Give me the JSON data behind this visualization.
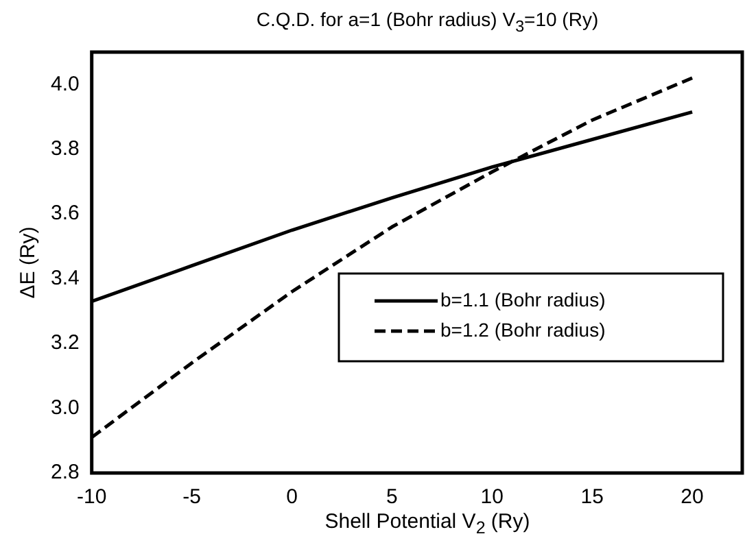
{
  "chart_data": {
    "type": "line",
    "title": "C.Q.D. for a=1 (Bohr radius) V$_{3}$=10 (Ry)",
    "xlabel": "Shell Potential V$_{2}$ (Ry)",
    "ylabel": "ΔE (Ry)",
    "x": [
      -10,
      -5,
      0,
      5,
      10,
      15,
      20
    ],
    "series": [
      {
        "name": "b=1.1 (Bohr radius)",
        "color": "#000000",
        "line_style": "solid",
        "values": [
          3.33,
          3.44,
          3.55,
          3.65,
          3.745,
          3.83,
          3.915
        ]
      },
      {
        "name": "b=1.2 (Bohr radius)",
        "color": "#000000",
        "line_style": "dashed",
        "values": [
          2.91,
          3.14,
          3.36,
          3.56,
          3.73,
          3.89,
          4.02
        ]
      }
    ],
    "xlim": [
      -10,
      22.5
    ],
    "xticks": [
      -10,
      -5,
      0,
      5,
      10,
      15,
      20
    ],
    "ylim": [
      2.8,
      4.1
    ],
    "yticks": [
      {
        "value": 2.8,
        "label": "2.8"
      },
      {
        "value": 3.0,
        "label": "3.0"
      },
      {
        "value": 3.2,
        "label": "3.2"
      },
      {
        "value": 3.4,
        "label": "3.4"
      },
      {
        "value": 3.6,
        "label": "3.6"
      },
      {
        "value": 3.8,
        "label": "3.8"
      },
      {
        "value": 4.0,
        "label": "4.0"
      }
    ],
    "grid": false,
    "legend": "right",
    "marker": "none"
  }
}
